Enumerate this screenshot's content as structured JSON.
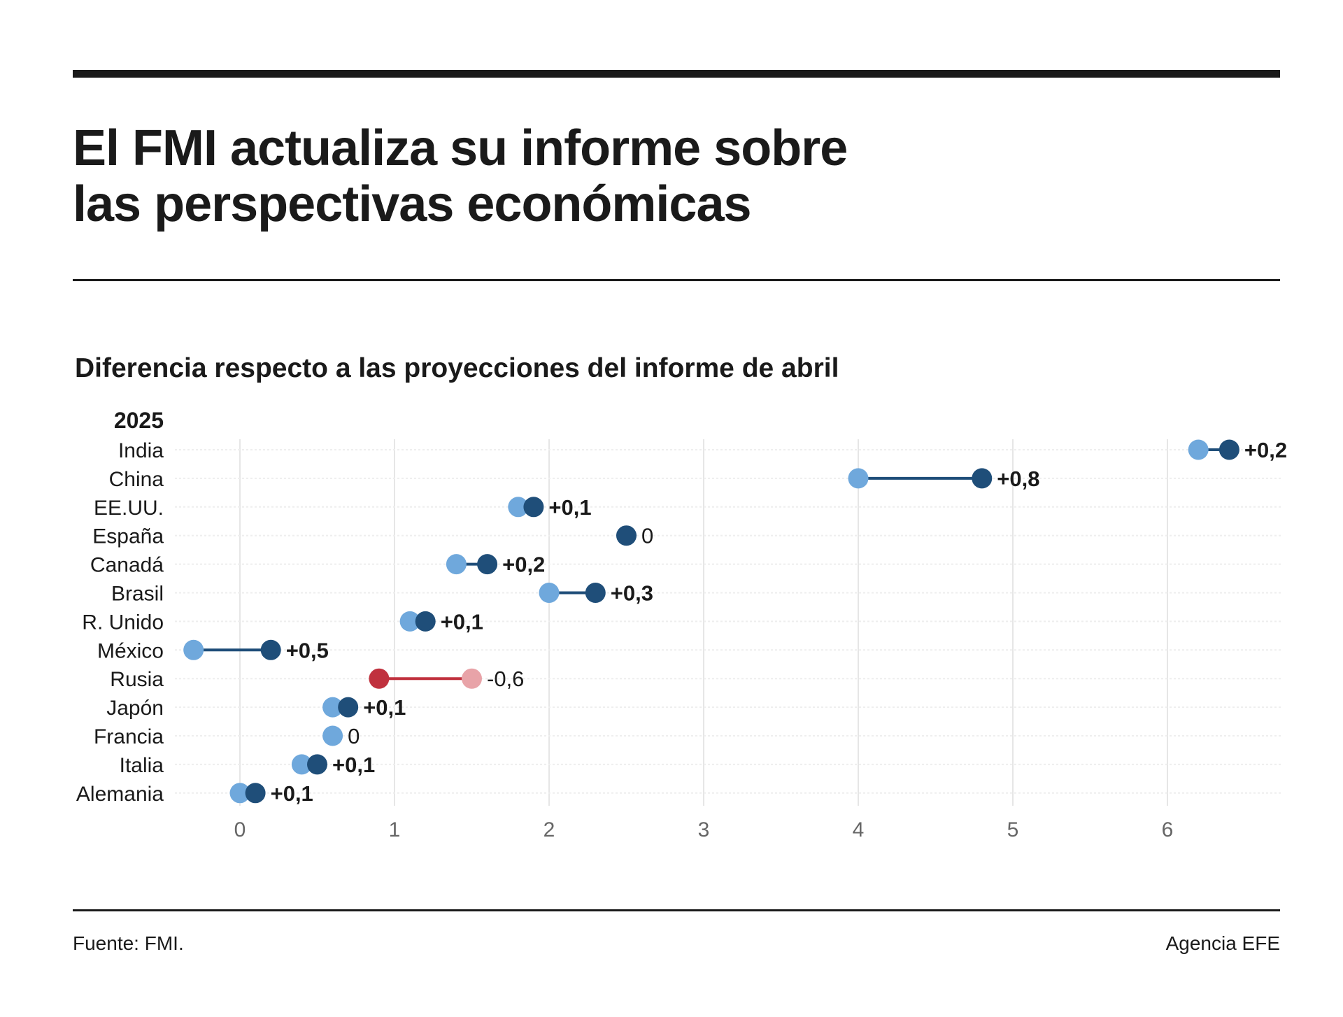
{
  "header": {
    "title_line1": "El FMI actualiza su informe sobre",
    "title_line2": "las perspectivas económicas"
  },
  "subtitle": "Diferencia respecto a las proyecciones del informe de abril",
  "footer": {
    "source": "Fuente: FMI.",
    "credit": "Agencia EFE"
  },
  "colors": {
    "april": "#6fa8dc",
    "current": "#1f4e79",
    "connector": "#1f4e79",
    "negative_current": "#c0313e",
    "negative_april": "#e8a3a8",
    "negative_connector": "#c0313e",
    "grid": "#e6e6e6",
    "text": "#1a1a1a",
    "tick": "#666666"
  },
  "chart_data": {
    "type": "dumbbell",
    "group_label": "2025",
    "xlim": [
      -0.4,
      6.75
    ],
    "x_ticks": [
      "0",
      "1",
      "2",
      "3",
      "4",
      "5",
      "6"
    ],
    "x_tick_values": [
      0,
      1,
      2,
      3,
      4,
      5,
      6
    ],
    "grid": true,
    "rows": [
      {
        "country": "India",
        "april": 6.2,
        "current": 6.4,
        "diff": "+0,2"
      },
      {
        "country": "China",
        "april": 4.0,
        "current": 4.8,
        "diff": "+0,8"
      },
      {
        "country": "EE.UU.",
        "april": 1.8,
        "current": 1.9,
        "diff": "+0,1"
      },
      {
        "country": "España",
        "april": 2.5,
        "current": 2.5,
        "diff": "0"
      },
      {
        "country": "Canadá",
        "april": 1.4,
        "current": 1.6,
        "diff": "+0,2"
      },
      {
        "country": "Brasil",
        "april": 2.0,
        "current": 2.3,
        "diff": "+0,3"
      },
      {
        "country": "R. Unido",
        "april": 1.1,
        "current": 1.2,
        "diff": "+0,1"
      },
      {
        "country": "México",
        "april": -0.3,
        "current": 0.2,
        "diff": "+0,5"
      },
      {
        "country": "Rusia",
        "april": 1.5,
        "current": 0.9,
        "diff": "-0,6"
      },
      {
        "country": "Japón",
        "april": 0.6,
        "current": 0.7,
        "diff": "+0,1"
      },
      {
        "country": "Francia",
        "april": 0.6,
        "current": 0.6,
        "diff": "0"
      },
      {
        "country": "Italia",
        "april": 0.4,
        "current": 0.5,
        "diff": "+0,1"
      },
      {
        "country": "Alemania",
        "april": 0.0,
        "current": 0.1,
        "diff": "+0,1"
      }
    ]
  }
}
